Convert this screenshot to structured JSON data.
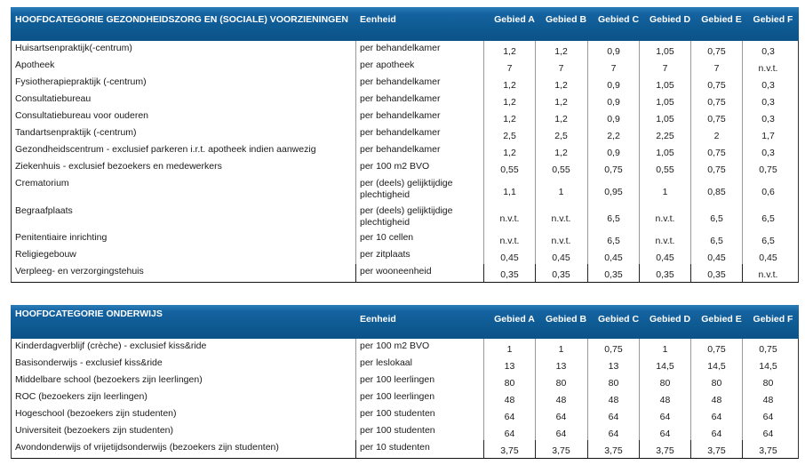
{
  "columns": {
    "unit_header": "Eenheid",
    "areas": [
      "Gebied A",
      "Gebied B",
      "Gebied C",
      "Gebied D",
      "Gebied E",
      "Gebied F"
    ]
  },
  "colors": {
    "header_bg": "#0e5a92",
    "header_text": "#ffffff",
    "border": "#999999"
  },
  "table1": {
    "title": "HOOFDCATEGORIE GEZONDHEIDSZORG EN (SOCIALE) VOORZIENINGEN",
    "rows": [
      {
        "name": "Huisartsenpraktijk(-centrum)",
        "unit": "per behandelkamer",
        "values": [
          "1,2",
          "1,2",
          "0,9",
          "1,05",
          "0,75",
          "0,3"
        ]
      },
      {
        "name": "Apotheek",
        "unit": "per apotheek",
        "values": [
          "7",
          "7",
          "7",
          "7",
          "7",
          "n.v.t."
        ]
      },
      {
        "name": "Fysiotherapiepraktijk (-centrum)",
        "unit": "per behandelkamer",
        "values": [
          "1,2",
          "1,2",
          "0,9",
          "1,05",
          "0,75",
          "0,3"
        ]
      },
      {
        "name": "Consultatiebureau",
        "unit": "per behandelkamer",
        "values": [
          "1,2",
          "1,2",
          "0,9",
          "1,05",
          "0,75",
          "0,3"
        ]
      },
      {
        "name": "Consultatiebureau voor ouderen",
        "unit": "per behandelkamer",
        "values": [
          "1,2",
          "1,2",
          "0,9",
          "1,05",
          "0,75",
          "0,3"
        ]
      },
      {
        "name": "Tandartsenpraktijk (-centrum)",
        "unit": "per behandelkamer",
        "values": [
          "2,5",
          "2,5",
          "2,2",
          "2,25",
          "2",
          "1,7"
        ]
      },
      {
        "name": "Gezondheidscentrum - exclusief parkeren i.r.t. apotheek indien aanwezig",
        "unit": "per behandelkamer",
        "values": [
          "1,2",
          "1,2",
          "0,9",
          "1,05",
          "0,75",
          "0,3"
        ]
      },
      {
        "name": "Ziekenhuis - exclusief bezoekers en medewerkers",
        "unit": "per 100 m2 BVO",
        "values": [
          "0,55",
          "0,55",
          "0,75",
          "0,55",
          "0,75",
          "0,75"
        ]
      },
      {
        "name": "Crematorium",
        "unit": "per (deels) gelijktijdige plechtigheid",
        "values": [
          "1,1",
          "1",
          "0,95",
          "1",
          "0,85",
          "0,6"
        ]
      },
      {
        "name": "Begraafplaats",
        "unit": "per (deels) gelijktijdige plechtigheid",
        "values": [
          "n.v.t.",
          "n.v.t.",
          "6,5",
          "n.v.t.",
          "6,5",
          "6,5"
        ]
      },
      {
        "name": "Penitentiaire inrichting",
        "unit": "per 10 cellen",
        "values": [
          "n.v.t.",
          "n.v.t.",
          "6,5",
          "n.v.t.",
          "6,5",
          "6,5"
        ]
      },
      {
        "name": "Religiegebouw",
        "unit": "per zitplaats",
        "values": [
          "0,45",
          "0,45",
          "0,45",
          "0,45",
          "0,45",
          "0,45"
        ]
      },
      {
        "name": "Verpleeg- en verzorgingstehuis",
        "unit": "per wooneenheid",
        "values": [
          "0,35",
          "0,35",
          "0,35",
          "0,35",
          "0,35",
          "n.v.t."
        ]
      }
    ]
  },
  "table2": {
    "title": "HOOFDCATEGORIE ONDERWIJS",
    "rows": [
      {
        "name": "Kinderdagverblijf (crèche) - exclusief kiss&ride",
        "unit": "per 100 m2 BVO",
        "values": [
          "1",
          "1",
          "0,75",
          "1",
          "0,75",
          "0,75"
        ]
      },
      {
        "name": "Basisonderwijs - exclusief kiss&ride",
        "unit": "per leslokaal",
        "values": [
          "13",
          "13",
          "13",
          "14,5",
          "14,5",
          "14,5"
        ]
      },
      {
        "name": "Middelbare school (bezoekers zijn leerlingen)",
        "unit": "per 100 leerlingen",
        "values": [
          "80",
          "80",
          "80",
          "80",
          "80",
          "80"
        ]
      },
      {
        "name": "ROC (bezoekers zijn leerlingen)",
        "unit": "per 100 leerlingen",
        "values": [
          "48",
          "48",
          "48",
          "48",
          "48",
          "48"
        ]
      },
      {
        "name": "Hogeschool (bezoekers zijn studenten)",
        "unit": "per 100 studenten",
        "values": [
          "64",
          "64",
          "64",
          "64",
          "64",
          "64"
        ]
      },
      {
        "name": "Universiteit (bezoekers zijn studenten)",
        "unit": "per 100 studenten",
        "values": [
          "64",
          "64",
          "64",
          "64",
          "64",
          "64"
        ]
      },
      {
        "name": "Avondonderwijs of  vrijetijdsonderwijs (bezoekers zijn studenten)",
        "unit": "per 10 studenten",
        "values": [
          "3,75",
          "3,75",
          "3,75",
          "3,75",
          "3,75",
          "3,75"
        ]
      }
    ]
  }
}
